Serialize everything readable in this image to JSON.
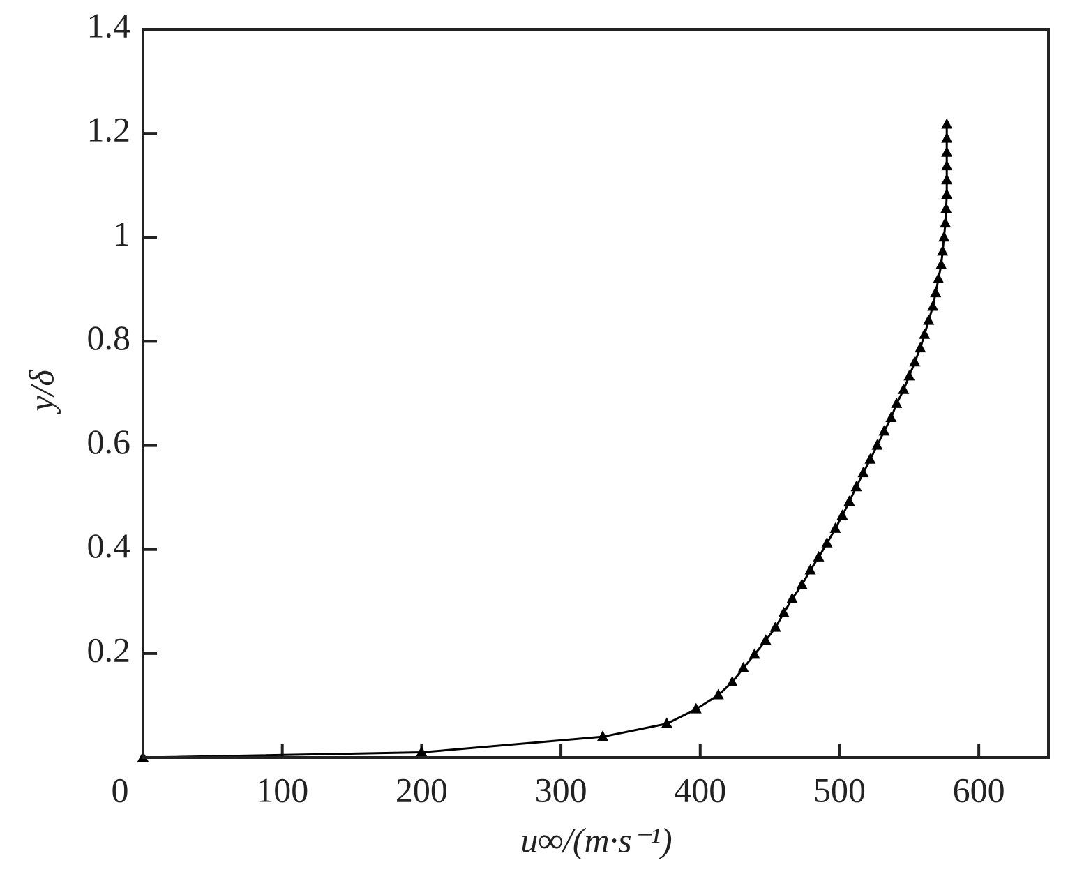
{
  "chart_data": {
    "type": "line",
    "x_label": "u∞/(m·s⁻¹)",
    "y_label": "y/δ",
    "series": [
      {
        "color": "#000000",
        "x": [
          0,
          200,
          330,
          376,
          397,
          413,
          423,
          431,
          439,
          447,
          454,
          460,
          466,
          473,
          479,
          485,
          491,
          497,
          502,
          507,
          512,
          517,
          522,
          527,
          532,
          537,
          541,
          546,
          550,
          554,
          558,
          561,
          564,
          567,
          569,
          571,
          573,
          574,
          575,
          576,
          576.5,
          577,
          577,
          577,
          577,
          577,
          577
        ],
        "values": [
          0,
          0.01,
          0.04,
          0.065,
          0.093,
          0.12,
          0.145,
          0.172,
          0.198,
          0.225,
          0.25,
          0.278,
          0.305,
          0.332,
          0.36,
          0.385,
          0.412,
          0.44,
          0.465,
          0.492,
          0.52,
          0.547,
          0.573,
          0.6,
          0.627,
          0.653,
          0.68,
          0.707,
          0.733,
          0.76,
          0.787,
          0.813,
          0.84,
          0.867,
          0.893,
          0.92,
          0.947,
          0.973,
          1.0,
          1.027,
          1.055,
          1.082,
          1.11,
          1.137,
          1.163,
          1.19,
          1.217
        ]
      }
    ],
    "xlim": [
      0,
      650
    ],
    "xticks": [
      0,
      100,
      200,
      300,
      400,
      500,
      600
    ],
    "ylim": [
      0,
      1.4
    ],
    "yticks": [
      0.2,
      0.4,
      0.6,
      0.8,
      1.0,
      1.2,
      1.4
    ],
    "grid": false
  }
}
